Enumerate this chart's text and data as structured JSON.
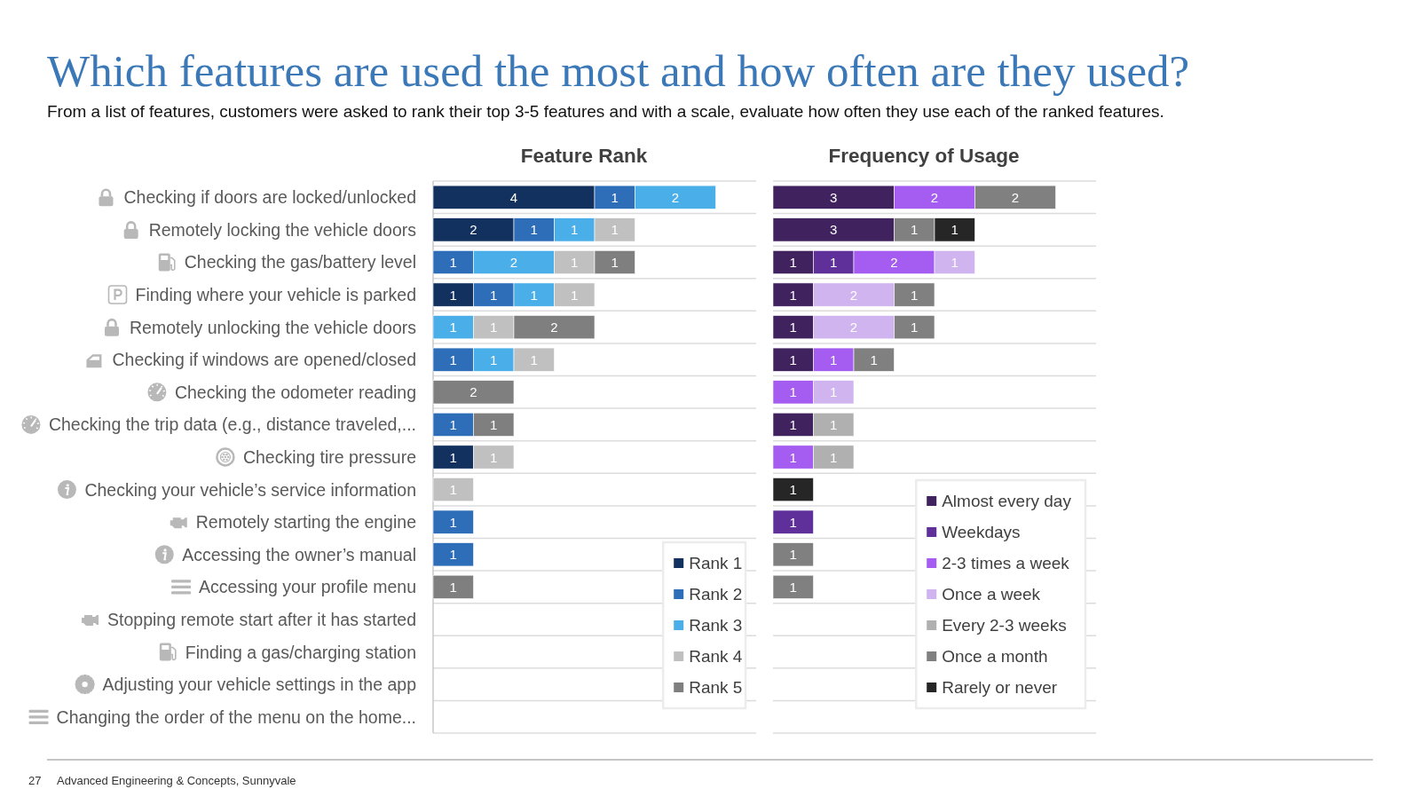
{
  "chart_data": [
    {
      "type": "other",
      "title": "Which features are used the most and how often are they used?",
      "subtitle": "From a list of features, customers were asked to rank their top 3-5 features and with a scale, evaluate how often they use each of the ranked features.",
      "annotations": [
        "27",
        "Advanced Engineering & Concepts, Sunnyvale"
      ]
    },
    {
      "type": "bar",
      "title": "Feature Rank",
      "orientation": "horizontal",
      "stacked": true,
      "data_labels": true,
      "grid": "y",
      "legend": "bottom right",
      "tick_labels": "y",
      "xlim": [
        0,
        8
      ],
      "categories": [
        "Checking if doors are locked/unlocked",
        "Remotely locking the vehicle doors",
        "Checking the gas/battery level",
        "Finding where your vehicle is parked",
        "Remotely unlocking the vehicle doors",
        "Checking if windows are opened/closed",
        "Checking the odometer reading",
        "Checking the trip data (e.g., distance traveled,...",
        "Checking tire pressure",
        "Checking your vehicle’s service information",
        "Remotely starting the engine",
        "Accessing the owner’s manual",
        "Accessing your profile menu",
        "Stopping remote start after it has started",
        "Finding a gas/charging station",
        "Adjusting your vehicle settings in the app",
        "Changing the order of the menu on the home..."
      ],
      "series": [
        {
          "name": "Rank 1",
          "color": "#12315e",
          "values": [
            4,
            2,
            null,
            1,
            null,
            null,
            null,
            null,
            1,
            null,
            null,
            null,
            null,
            null,
            null,
            null,
            null
          ]
        },
        {
          "name": "Rank 2",
          "color": "#2e6db8",
          "values": [
            1,
            1,
            1,
            1,
            null,
            1,
            null,
            1,
            null,
            null,
            1,
            1,
            null,
            null,
            null,
            null,
            null
          ]
        },
        {
          "name": "Rank 3",
          "color": "#4aaee8",
          "values": [
            2,
            1,
            2,
            1,
            1,
            1,
            null,
            null,
            null,
            null,
            null,
            null,
            null,
            null,
            null,
            null,
            null
          ]
        },
        {
          "name": "Rank 4",
          "color": "#c0c0c0",
          "values": [
            null,
            1,
            1,
            1,
            1,
            1,
            null,
            null,
            1,
            1,
            null,
            null,
            null,
            null,
            null,
            null,
            null
          ]
        },
        {
          "name": "Rank 5",
          "color": "#7f7f7f",
          "values": [
            null,
            null,
            1,
            null,
            2,
            null,
            2,
            1,
            null,
            null,
            null,
            null,
            1,
            null,
            null,
            null,
            null
          ]
        }
      ]
    },
    {
      "type": "bar",
      "title": "Frequency of Usage",
      "orientation": "horizontal",
      "stacked": true,
      "data_labels": true,
      "grid": "y",
      "legend": "bottom right",
      "tick_labels": false,
      "xlim": [
        0,
        8
      ],
      "categories": [
        null,
        null,
        null,
        null,
        null,
        null,
        null,
        null,
        null,
        null,
        null,
        null,
        null,
        null,
        null,
        null,
        null
      ],
      "series": [
        {
          "name": "Almost every day",
          "color": "#40225f",
          "values": [
            3,
            3,
            1,
            1,
            1,
            1,
            null,
            1,
            null,
            null,
            null,
            null,
            null,
            null,
            null,
            null,
            null
          ]
        },
        {
          "name": "Weekdays",
          "color": "#5f309a",
          "values": [
            null,
            null,
            1,
            null,
            null,
            null,
            null,
            null,
            null,
            null,
            1,
            null,
            null,
            null,
            null,
            null,
            null
          ]
        },
        {
          "name": "2-3 times a week",
          "color": "#a55cf0",
          "values": [
            2,
            null,
            2,
            null,
            null,
            1,
            1,
            null,
            1,
            null,
            null,
            null,
            null,
            null,
            null,
            null,
            null
          ]
        },
        {
          "name": "Once a week",
          "color": "#cfb4f0",
          "values": [
            null,
            null,
            1,
            2,
            2,
            null,
            1,
            null,
            null,
            null,
            null,
            null,
            null,
            null,
            null,
            null,
            null
          ]
        },
        {
          "name": "Every 2-3 weeks",
          "color": "#b0b0b0",
          "values": [
            null,
            null,
            null,
            null,
            null,
            null,
            null,
            1,
            1,
            null,
            null,
            null,
            null,
            null,
            null,
            null,
            null
          ]
        },
        {
          "name": "Once a month",
          "color": "#808080",
          "values": [
            2,
            1,
            null,
            1,
            1,
            1,
            null,
            null,
            null,
            null,
            null,
            1,
            1,
            null,
            null,
            null,
            null
          ]
        },
        {
          "name": "Rarely or never",
          "color": "#262626",
          "values": [
            null,
            1,
            null,
            null,
            null,
            null,
            null,
            null,
            null,
            1,
            null,
            null,
            null,
            null,
            null,
            null,
            null
          ]
        }
      ]
    }
  ]
}
